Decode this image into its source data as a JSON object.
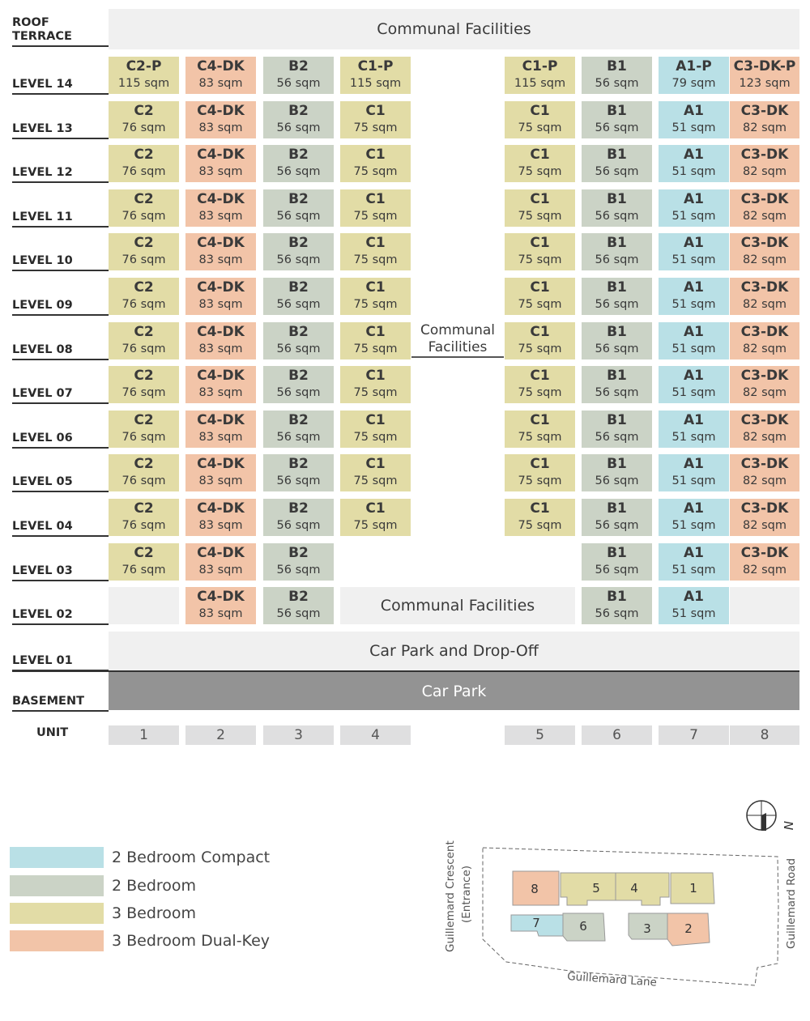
{
  "colors": {
    "a_type": "#b9e0e6",
    "b_type": "#cbd3c6",
    "c_type": "#e2dca6",
    "dk_type": "#f2c4a8",
    "empty": "#f0f0f0",
    "basement": "#939393",
    "unit_box": "#dfdfe0"
  },
  "header": {
    "roof_label": "ROOF TERRACE",
    "roof_band": "Communal Facilities"
  },
  "levels": [
    {
      "label": "LEVEL 14",
      "units": [
        {
          "type": "C2-P",
          "size": "115 sqm",
          "cat": "c"
        },
        {
          "type": "C4-DK",
          "size": "83 sqm",
          "cat": "dk"
        },
        {
          "type": "B2",
          "size": "56 sqm",
          "cat": "b"
        },
        {
          "type": "C1-P",
          "size": "115 sqm",
          "cat": "c"
        },
        {
          "type": "C1-P",
          "size": "115 sqm",
          "cat": "c"
        },
        {
          "type": "B1",
          "size": "56 sqm",
          "cat": "b"
        },
        {
          "type": "A1-P",
          "size": "79 sqm",
          "cat": "a"
        },
        {
          "type": "C3-DK-P",
          "size": "123 sqm",
          "cat": "dk"
        }
      ]
    },
    {
      "label": "LEVEL 13",
      "units": [
        {
          "type": "C2",
          "size": "76 sqm",
          "cat": "c"
        },
        {
          "type": "C4-DK",
          "size": "83 sqm",
          "cat": "dk"
        },
        {
          "type": "B2",
          "size": "56 sqm",
          "cat": "b"
        },
        {
          "type": "C1",
          "size": "75 sqm",
          "cat": "c"
        },
        {
          "type": "C1",
          "size": "75 sqm",
          "cat": "c"
        },
        {
          "type": "B1",
          "size": "56 sqm",
          "cat": "b"
        },
        {
          "type": "A1",
          "size": "51 sqm",
          "cat": "a"
        },
        {
          "type": "C3-DK",
          "size": "82 sqm",
          "cat": "dk"
        }
      ]
    },
    {
      "label": "LEVEL 12",
      "units": [
        {
          "type": "C2",
          "size": "76 sqm",
          "cat": "c"
        },
        {
          "type": "C4-DK",
          "size": "83 sqm",
          "cat": "dk"
        },
        {
          "type": "B2",
          "size": "56 sqm",
          "cat": "b"
        },
        {
          "type": "C1",
          "size": "75 sqm",
          "cat": "c"
        },
        {
          "type": "C1",
          "size": "75 sqm",
          "cat": "c"
        },
        {
          "type": "B1",
          "size": "56 sqm",
          "cat": "b"
        },
        {
          "type": "A1",
          "size": "51 sqm",
          "cat": "a"
        },
        {
          "type": "C3-DK",
          "size": "82 sqm",
          "cat": "dk"
        }
      ]
    },
    {
      "label": "LEVEL 11",
      "units": [
        {
          "type": "C2",
          "size": "76 sqm",
          "cat": "c"
        },
        {
          "type": "C4-DK",
          "size": "83 sqm",
          "cat": "dk"
        },
        {
          "type": "B2",
          "size": "56 sqm",
          "cat": "b"
        },
        {
          "type": "C1",
          "size": "75 sqm",
          "cat": "c"
        },
        {
          "type": "C1",
          "size": "75 sqm",
          "cat": "c"
        },
        {
          "type": "B1",
          "size": "56 sqm",
          "cat": "b"
        },
        {
          "type": "A1",
          "size": "51 sqm",
          "cat": "a"
        },
        {
          "type": "C3-DK",
          "size": "82 sqm",
          "cat": "dk"
        }
      ]
    },
    {
      "label": "LEVEL 10",
      "units": [
        {
          "type": "C2",
          "size": "76 sqm",
          "cat": "c"
        },
        {
          "type": "C4-DK",
          "size": "83 sqm",
          "cat": "dk"
        },
        {
          "type": "B2",
          "size": "56 sqm",
          "cat": "b"
        },
        {
          "type": "C1",
          "size": "75 sqm",
          "cat": "c"
        },
        {
          "type": "C1",
          "size": "75 sqm",
          "cat": "c"
        },
        {
          "type": "B1",
          "size": "56 sqm",
          "cat": "b"
        },
        {
          "type": "A1",
          "size": "51 sqm",
          "cat": "a"
        },
        {
          "type": "C3-DK",
          "size": "82 sqm",
          "cat": "dk"
        }
      ]
    },
    {
      "label": "LEVEL 09",
      "units": [
        {
          "type": "C2",
          "size": "76 sqm",
          "cat": "c"
        },
        {
          "type": "C4-DK",
          "size": "83 sqm",
          "cat": "dk"
        },
        {
          "type": "B2",
          "size": "56 sqm",
          "cat": "b"
        },
        {
          "type": "C1",
          "size": "75 sqm",
          "cat": "c"
        },
        {
          "type": "C1",
          "size": "75 sqm",
          "cat": "c"
        },
        {
          "type": "B1",
          "size": "56 sqm",
          "cat": "b"
        },
        {
          "type": "A1",
          "size": "51 sqm",
          "cat": "a"
        },
        {
          "type": "C3-DK",
          "size": "82 sqm",
          "cat": "dk"
        }
      ]
    },
    {
      "label": "LEVEL 08",
      "units": [
        {
          "type": "C2",
          "size": "76 sqm",
          "cat": "c"
        },
        {
          "type": "C4-DK",
          "size": "83 sqm",
          "cat": "dk"
        },
        {
          "type": "B2",
          "size": "56 sqm",
          "cat": "b"
        },
        {
          "type": "C1",
          "size": "75 sqm",
          "cat": "c"
        },
        {
          "type": "C1",
          "size": "75 sqm",
          "cat": "c"
        },
        {
          "type": "B1",
          "size": "56 sqm",
          "cat": "b"
        },
        {
          "type": "A1",
          "size": "51 sqm",
          "cat": "a"
        },
        {
          "type": "C3-DK",
          "size": "82 sqm",
          "cat": "dk"
        }
      ]
    },
    {
      "label": "LEVEL 07",
      "units": [
        {
          "type": "C2",
          "size": "76 sqm",
          "cat": "c"
        },
        {
          "type": "C4-DK",
          "size": "83 sqm",
          "cat": "dk"
        },
        {
          "type": "B2",
          "size": "56 sqm",
          "cat": "b"
        },
        {
          "type": "C1",
          "size": "75 sqm",
          "cat": "c"
        },
        {
          "type": "C1",
          "size": "75 sqm",
          "cat": "c"
        },
        {
          "type": "B1",
          "size": "56 sqm",
          "cat": "b"
        },
        {
          "type": "A1",
          "size": "51 sqm",
          "cat": "a"
        },
        {
          "type": "C3-DK",
          "size": "82 sqm",
          "cat": "dk"
        }
      ]
    },
    {
      "label": "LEVEL 06",
      "units": [
        {
          "type": "C2",
          "size": "76 sqm",
          "cat": "c"
        },
        {
          "type": "C4-DK",
          "size": "83 sqm",
          "cat": "dk"
        },
        {
          "type": "B2",
          "size": "56 sqm",
          "cat": "b"
        },
        {
          "type": "C1",
          "size": "75 sqm",
          "cat": "c"
        },
        {
          "type": "C1",
          "size": "75 sqm",
          "cat": "c"
        },
        {
          "type": "B1",
          "size": "56 sqm",
          "cat": "b"
        },
        {
          "type": "A1",
          "size": "51 sqm",
          "cat": "a"
        },
        {
          "type": "C3-DK",
          "size": "82 sqm",
          "cat": "dk"
        }
      ]
    },
    {
      "label": "LEVEL 05",
      "units": [
        {
          "type": "C2",
          "size": "76 sqm",
          "cat": "c"
        },
        {
          "type": "C4-DK",
          "size": "83 sqm",
          "cat": "dk"
        },
        {
          "type": "B2",
          "size": "56 sqm",
          "cat": "b"
        },
        {
          "type": "C1",
          "size": "75 sqm",
          "cat": "c"
        },
        {
          "type": "C1",
          "size": "75 sqm",
          "cat": "c"
        },
        {
          "type": "B1",
          "size": "56 sqm",
          "cat": "b"
        },
        {
          "type": "A1",
          "size": "51 sqm",
          "cat": "a"
        },
        {
          "type": "C3-DK",
          "size": "82 sqm",
          "cat": "dk"
        }
      ]
    },
    {
      "label": "LEVEL 04",
      "units": [
        {
          "type": "C2",
          "size": "76 sqm",
          "cat": "c"
        },
        {
          "type": "C4-DK",
          "size": "83 sqm",
          "cat": "dk"
        },
        {
          "type": "B2",
          "size": "56 sqm",
          "cat": "b"
        },
        {
          "type": "C1",
          "size": "75 sqm",
          "cat": "c"
        },
        {
          "type": "C1",
          "size": "75 sqm",
          "cat": "c"
        },
        {
          "type": "B1",
          "size": "56 sqm",
          "cat": "b"
        },
        {
          "type": "A1",
          "size": "51 sqm",
          "cat": "a"
        },
        {
          "type": "C3-DK",
          "size": "82 sqm",
          "cat": "dk"
        }
      ]
    },
    {
      "label": "LEVEL 03",
      "units": [
        {
          "type": "C2",
          "size": "76 sqm",
          "cat": "c"
        },
        {
          "type": "C4-DK",
          "size": "83 sqm",
          "cat": "dk"
        },
        {
          "type": "B2",
          "size": "56 sqm",
          "cat": "b"
        },
        null,
        null,
        {
          "type": "B1",
          "size": "56 sqm",
          "cat": "b"
        },
        {
          "type": "A1",
          "size": "51 sqm",
          "cat": "a"
        },
        {
          "type": "C3-DK",
          "size": "82 sqm",
          "cat": "dk"
        }
      ]
    },
    {
      "label": "LEVEL 02",
      "units": [
        {
          "empty": true
        },
        {
          "type": "C4-DK",
          "size": "83 sqm",
          "cat": "dk"
        },
        {
          "type": "B2",
          "size": "56 sqm",
          "cat": "b"
        },
        null,
        null,
        {
          "type": "B1",
          "size": "56 sqm",
          "cat": "b"
        },
        {
          "type": "A1",
          "size": "51 sqm",
          "cat": "a"
        },
        {
          "empty": true
        }
      ]
    }
  ],
  "middle_facilities": "Communal Facilities",
  "level02_facilities": "Communal Facilities",
  "level01": {
    "label": "LEVEL 01",
    "band": "Car Park and Drop-Off"
  },
  "basement": {
    "label": "BASEMENT",
    "band": "Car Park"
  },
  "unit_row": {
    "label": "UNIT",
    "units": [
      "1",
      "2",
      "3",
      "4",
      "5",
      "6",
      "7",
      "8"
    ]
  },
  "legend": [
    {
      "label": "2 Bedroom Compact",
      "color": "#b9e0e6"
    },
    {
      "label": "2 Bedroom",
      "color": "#cbd3c6"
    },
    {
      "label": "3 Bedroom",
      "color": "#e2dca6"
    },
    {
      "label": "3 Bedroom Dual-Key",
      "color": "#f2c4a8"
    }
  ],
  "site_plan": {
    "road_left": "Guillemard Crescent",
    "road_left_sub": "(Entrance)",
    "road_right": "Guillemard Road",
    "road_bottom": "Guillemard Lane",
    "north": "N",
    "blocks": [
      "8",
      "5",
      "4",
      "1",
      "7",
      "6",
      "3",
      "2"
    ]
  }
}
